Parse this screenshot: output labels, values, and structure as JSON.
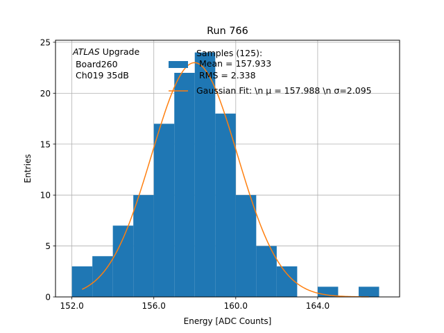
{
  "chart_data": {
    "type": "bar",
    "title": "Run 766",
    "xlabel": "Energy [ADC Counts]",
    "ylabel": "Entries",
    "xlim": [
      151.2,
      168.0
    ],
    "ylim": [
      0,
      25.2
    ],
    "grid": true,
    "x_ticks": [
      {
        "value": 152.0,
        "label": "152.0"
      },
      {
        "value": 156.0,
        "label": "156.0"
      },
      {
        "value": 160.0,
        "label": "160.0"
      },
      {
        "value": 164.0,
        "label": "164.0"
      }
    ],
    "y_ticks": [
      0,
      5,
      10,
      15,
      20,
      25
    ],
    "annotation": {
      "italic": "ATLAS",
      "rest": " Upgrade",
      "line2": " Board260",
      "line3": " Ch019 35dB"
    },
    "histogram": {
      "bin_edges": [
        152,
        153,
        154,
        155,
        156,
        157,
        158,
        159,
        160,
        161,
        162,
        163,
        164,
        165,
        166,
        167
      ],
      "counts": [
        3,
        4,
        7,
        10,
        17,
        22,
        24,
        18,
        10,
        5,
        3,
        0,
        1,
        0,
        1
      ],
      "color": "#1f77b4",
      "legend_lines": [
        "Samples (125):",
        " Mean = 157.933",
        " RMS = 2.338"
      ]
    },
    "fit": {
      "type": "gaussian",
      "mu": 157.988,
      "sigma": 2.095,
      "amplitude": 23.0,
      "x_range": [
        152.5,
        166.5
      ],
      "color": "#ff7f0e",
      "legend_label": "Gaussian Fit: \\n μ = 157.988 \\n σ=2.095"
    },
    "legend_placement": "top-center"
  }
}
